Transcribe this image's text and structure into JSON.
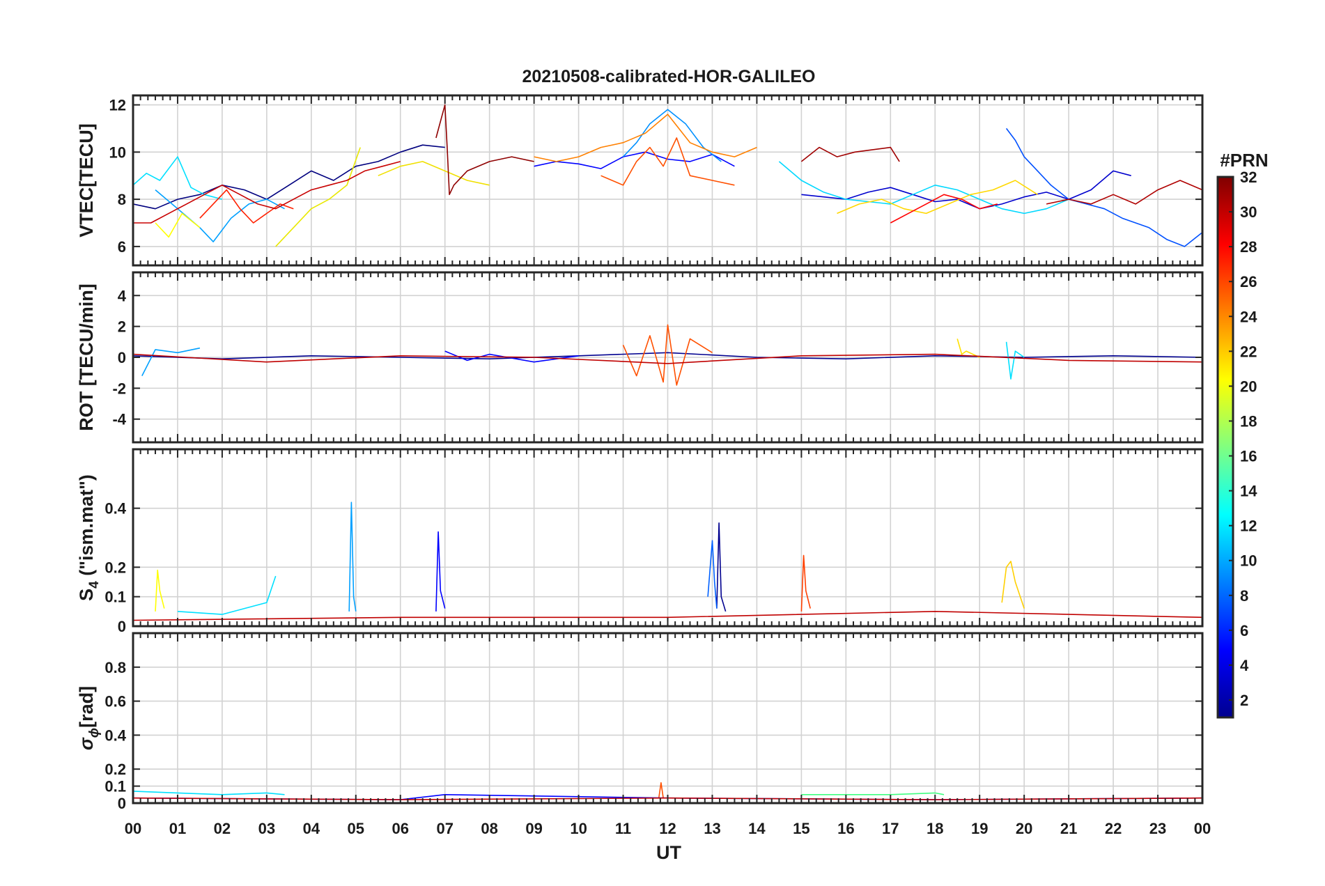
{
  "chart_data": {
    "type": "line",
    "title": "20210508-calibrated-HOR-GALILEO",
    "xlabel": "UT",
    "x_range_hours": [
      0,
      24
    ],
    "x_tick_labels": [
      "00",
      "01",
      "02",
      "03",
      "04",
      "05",
      "06",
      "07",
      "08",
      "09",
      "10",
      "11",
      "12",
      "13",
      "14",
      "15",
      "16",
      "17",
      "18",
      "19",
      "20",
      "21",
      "22",
      "23",
      "00"
    ],
    "grid": true,
    "colorbar": {
      "label": "#PRN",
      "range": [
        1,
        32
      ],
      "tick_labels": [
        "2",
        "4",
        "6",
        "8",
        "10",
        "12",
        "14",
        "16",
        "18",
        "20",
        "22",
        "24",
        "26",
        "28",
        "30",
        "32"
      ],
      "colormap": "jet",
      "colormap_stops": [
        "#00008f",
        "#0000ff",
        "#0080ff",
        "#00ffff",
        "#80ff80",
        "#ffff00",
        "#ff8000",
        "#ff0000",
        "#800000"
      ]
    },
    "panels": [
      {
        "id": "vtec",
        "ylabel_parts": [
          "VTEC[TECU]"
        ],
        "ylim": [
          5.2,
          12.4
        ],
        "y_ticks": [
          6,
          8,
          10,
          12
        ],
        "y_tick_labels": [
          "6",
          "8",
          "10",
          "12"
        ],
        "series": [
          {
            "color": "#00007f",
            "x": [
              0,
              0.5,
              1,
              1.5,
              2,
              2.5,
              3,
              3.5,
              4,
              4.5,
              5,
              5.5,
              6,
              6.5,
              7
            ],
            "values": [
              7.8,
              7.6,
              8.0,
              8.2,
              8.6,
              8.4,
              8.0,
              8.6,
              9.2,
              8.8,
              9.4,
              9.6,
              10.0,
              10.3,
              10.2
            ]
          },
          {
            "color": "#0000ff",
            "x": [
              9,
              9.5,
              10,
              10.5,
              11,
              11.5,
              12,
              12.5,
              13,
              13.5
            ],
            "values": [
              9.4,
              9.6,
              9.5,
              9.3,
              9.8,
              10.0,
              9.7,
              9.6,
              9.9,
              9.4
            ]
          },
          {
            "color": "#0000cd",
            "x": [
              15,
              15.5,
              16,
              16.5,
              17,
              17.5,
              18,
              18.5,
              19,
              19.5,
              20,
              20.5,
              21,
              21.5,
              22,
              22.4
            ],
            "values": [
              8.2,
              8.1,
              8.0,
              8.3,
              8.5,
              8.2,
              7.9,
              8.0,
              7.6,
              7.8,
              8.1,
              8.3,
              8.0,
              8.4,
              9.2,
              9.0
            ]
          },
          {
            "color": "#0050ff",
            "x": [
              19.6,
              19.8,
              20,
              20.3,
              20.6,
              21,
              21.4,
              21.8,
              22.2,
              22.8,
              23.2,
              23.6,
              24
            ],
            "values": [
              11.0,
              10.5,
              9.8,
              9.2,
              8.6,
              8.0,
              7.8,
              7.6,
              7.2,
              6.8,
              6.3,
              6.0,
              6.6
            ]
          },
          {
            "color": "#00a0ff",
            "x": [
              0.5,
              1,
              1.5,
              1.8,
              2.2,
              2.6,
              3,
              3.4
            ],
            "values": [
              8.4,
              7.6,
              6.8,
              6.2,
              7.2,
              7.8,
              8.0,
              7.6
            ]
          },
          {
            "color": "#0090ff",
            "x": [
              11,
              11.3,
              11.6,
              12,
              12.4,
              12.8,
              13.2
            ],
            "values": [
              9.8,
              10.4,
              11.2,
              11.8,
              11.2,
              10.2,
              9.6
            ]
          },
          {
            "color": "#00e0ff",
            "x": [
              0,
              0.3,
              0.6,
              1,
              1.3,
              1.6,
              2
            ],
            "values": [
              8.6,
              9.1,
              8.8,
              9.8,
              8.5,
              8.2,
              8.0
            ]
          },
          {
            "color": "#00d8ff",
            "x": [
              14.5,
              15,
              15.5,
              16,
              16.5,
              17,
              17.5,
              18,
              18.5,
              19,
              19.5,
              20,
              20.5,
              21
            ],
            "values": [
              9.6,
              8.8,
              8.3,
              8.0,
              7.9,
              7.8,
              8.2,
              8.6,
              8.4,
              8.0,
              7.6,
              7.4,
              7.6,
              8.0
            ]
          },
          {
            "color": "#ffff00",
            "x": [
              0.5,
              0.8,
              1.1,
              1.5
            ],
            "values": [
              7.0,
              6.4,
              7.4,
              6.8
            ]
          },
          {
            "color": "#e8e800",
            "x": [
              3.2,
              3.6,
              4,
              4.4,
              4.8,
              5.1
            ],
            "values": [
              6.0,
              6.8,
              7.6,
              8.0,
              8.6,
              10.2
            ]
          },
          {
            "color": "#f0e000",
            "x": [
              5.5,
              6,
              6.5,
              7,
              7.5,
              8
            ],
            "values": [
              9.0,
              9.4,
              9.6,
              9.2,
              8.8,
              8.6
            ]
          },
          {
            "color": "#ffd800",
            "x": [
              15.8,
              16.3,
              16.8,
              17.3,
              17.8,
              18.3,
              18.8,
              19.3,
              19.8,
              20.3
            ],
            "values": [
              7.4,
              7.8,
              8.0,
              7.6,
              7.4,
              7.8,
              8.2,
              8.4,
              8.8,
              8.2
            ]
          },
          {
            "color": "#ff8000",
            "x": [
              9,
              9.5,
              10,
              10.5,
              11,
              11.5,
              12,
              12.5,
              13,
              13.5,
              14
            ],
            "values": [
              9.8,
              9.6,
              9.8,
              10.2,
              10.4,
              10.8,
              11.6,
              10.4,
              10.0,
              9.8,
              10.2
            ]
          },
          {
            "color": "#ff5000",
            "x": [
              10.5,
              11,
              11.3,
              11.6,
              11.9,
              12.2,
              12.5,
              13,
              13.5
            ],
            "values": [
              9.0,
              8.6,
              9.6,
              10.2,
              9.4,
              10.6,
              9.0,
              8.8,
              8.6
            ]
          },
          {
            "color": "#ff2000",
            "x": [
              1.5,
              1.8,
              2.1,
              2.4,
              2.7,
              3,
              3.3,
              3.6
            ],
            "values": [
              7.2,
              7.8,
              8.4,
              7.6,
              7.0,
              7.4,
              7.8,
              7.6
            ]
          },
          {
            "color": "#ff0000",
            "x": [
              17,
              17.4,
              17.8,
              18.2,
              18.6,
              19,
              19.4
            ],
            "values": [
              7.0,
              7.4,
              7.8,
              8.2,
              8.0,
              7.6,
              7.8
            ]
          },
          {
            "color": "#c80000",
            "x": [
              0,
              0.4,
              0.8,
              1.2,
              1.6,
              2,
              2.4,
              2.8,
              3.2,
              3.6,
              4,
              4.4,
              4.8,
              5.2,
              5.6,
              6
            ],
            "values": [
              7.0,
              7.0,
              7.4,
              7.8,
              8.2,
              8.6,
              8.2,
              7.8,
              7.6,
              8.0,
              8.4,
              8.6,
              8.8,
              9.2,
              9.4,
              9.6
            ]
          },
          {
            "color": "#a00000",
            "x": [
              15,
              15.4,
              15.8,
              16.2,
              16.6,
              17,
              17.2
            ],
            "values": [
              9.6,
              10.2,
              9.8,
              10.0,
              10.1,
              10.2,
              9.6
            ]
          },
          {
            "color": "#8f0000",
            "x": [
              6.8,
              7,
              7.05,
              7.1,
              7.2,
              7.5,
              8,
              8.5,
              9
            ],
            "values": [
              10.6,
              12.0,
              10.2,
              8.2,
              8.6,
              9.2,
              9.6,
              9.8,
              9.6
            ]
          },
          {
            "color": "#b00000",
            "x": [
              20.5,
              21,
              21.5,
              22,
              22.5,
              23,
              23.5,
              24
            ],
            "values": [
              7.8,
              8.0,
              7.8,
              8.2,
              7.8,
              8.4,
              8.8,
              8.4
            ]
          }
        ]
      },
      {
        "id": "rot",
        "ylabel_parts": [
          "ROT [TECU/min]"
        ],
        "ylim": [
          -5.5,
          5.5
        ],
        "y_ticks": [
          -4,
          -2,
          0,
          2,
          4
        ],
        "y_tick_labels": [
          "-4",
          "-2",
          "0",
          "2",
          "4"
        ],
        "noise_band": {
          "baseline": 0.0,
          "amplitude": 0.25
        },
        "series": [
          {
            "color": "#00008f",
            "x": [
              0,
              2,
              4,
              6,
              8,
              10,
              12,
              14,
              16,
              18,
              20,
              22,
              24
            ],
            "values": [
              0.1,
              -0.1,
              0.1,
              0,
              -0.1,
              0.1,
              0.3,
              0,
              -0.1,
              0.1,
              0,
              0.1,
              0
            ]
          },
          {
            "color": "#0000ff",
            "x": [
              7,
              7.5,
              8,
              9,
              10
            ],
            "values": [
              0.4,
              -0.2,
              0.2,
              -0.3,
              0.1
            ]
          },
          {
            "color": "#00a0ff",
            "x": [
              0.2,
              0.5,
              1,
              1.5
            ],
            "values": [
              -1.2,
              0.5,
              0.3,
              0.6
            ]
          },
          {
            "color": "#00e0ff",
            "x": [
              19.6,
              19.7,
              19.8,
              20
            ],
            "values": [
              1.0,
              -1.4,
              0.4,
              0
            ]
          },
          {
            "color": "#ffe000",
            "x": [
              18.5,
              18.6,
              18.7,
              19
            ],
            "values": [
              1.2,
              0.2,
              0.4,
              0
            ]
          },
          {
            "color": "#ff5000",
            "x": [
              11,
              11.3,
              11.6,
              11.9,
              12,
              12.2,
              12.5,
              13
            ],
            "values": [
              0.8,
              -1.2,
              1.4,
              -1.6,
              2.1,
              -1.8,
              1.2,
              0.3
            ]
          },
          {
            "color": "#c00000",
            "x": [
              0,
              3,
              6,
              9,
              12,
              15,
              18,
              21,
              24
            ],
            "values": [
              0.2,
              -0.3,
              0.1,
              0,
              -0.4,
              0.1,
              0.2,
              -0.2,
              -0.3
            ]
          }
        ]
      },
      {
        "id": "s4",
        "ylabel_parts": [
          "S",
          "4",
          " (\"ism.mat\")"
        ],
        "ylim": [
          0,
          0.6
        ],
        "y_ticks": [
          0,
          0.1,
          0.2,
          0.4
        ],
        "y_tick_labels": [
          "0",
          "0.1",
          "0.2",
          "0.4"
        ],
        "series": [
          {
            "color": "#00a0ff",
            "x": [
              4.85,
              4.9,
              4.95,
              5.0
            ],
            "values": [
              0.05,
              0.42,
              0.1,
              0.05
            ]
          },
          {
            "color": "#0000ff",
            "x": [
              6.8,
              6.85,
              6.9,
              7.0
            ],
            "values": [
              0.05,
              0.32,
              0.12,
              0.06
            ]
          },
          {
            "color": "#00008f",
            "x": [
              13.1,
              13.15,
              13.2,
              13.3
            ],
            "values": [
              0.06,
              0.35,
              0.1,
              0.05
            ]
          },
          {
            "color": "#0060ff",
            "x": [
              12.9,
              13,
              13.05,
              13.1
            ],
            "values": [
              0.1,
              0.29,
              0.15,
              0.06
            ]
          },
          {
            "color": "#ff4000",
            "x": [
              15,
              15.05,
              15.1,
              15.2
            ],
            "values": [
              0.05,
              0.24,
              0.12,
              0.06
            ]
          },
          {
            "color": "#ffd000",
            "x": [
              19.5,
              19.6,
              19.7,
              19.8,
              20
            ],
            "values": [
              0.08,
              0.2,
              0.22,
              0.15,
              0.06
            ]
          },
          {
            "color": "#ffff00",
            "x": [
              0.5,
              0.55,
              0.6,
              0.7
            ],
            "values": [
              0.05,
              0.19,
              0.12,
              0.06
            ]
          },
          {
            "color": "#00e0ff",
            "x": [
              1,
              2,
              3,
              3.2
            ],
            "values": [
              0.05,
              0.04,
              0.08,
              0.17
            ]
          },
          {
            "color": "#c00000",
            "x": [
              0,
              6,
              12,
              18,
              24
            ],
            "values": [
              0.02,
              0.03,
              0.03,
              0.05,
              0.03
            ]
          }
        ]
      },
      {
        "id": "sigma_phi",
        "ylabel_parts": [
          "σ",
          "ϕ",
          "[rad]"
        ],
        "ylim": [
          0,
          1.0
        ],
        "y_ticks": [
          0,
          0.1,
          0.2,
          0.4,
          0.6,
          0.8
        ],
        "y_tick_labels": [
          "0",
          "0.1",
          "0.2",
          "0.4",
          "0.6",
          "0.8"
        ],
        "series": [
          {
            "color": "#00e0ff",
            "x": [
              0,
              1,
              2,
              3,
              3.4
            ],
            "values": [
              0.07,
              0.06,
              0.05,
              0.06,
              0.05
            ]
          },
          {
            "color": "#40ff80",
            "x": [
              15,
              16,
              17,
              18,
              18.2
            ],
            "values": [
              0.05,
              0.05,
              0.05,
              0.06,
              0.05
            ]
          },
          {
            "color": "#ff5000",
            "x": [
              11.8,
              11.85,
              11.9
            ],
            "values": [
              0.03,
              0.12,
              0.03
            ]
          },
          {
            "color": "#0000ff",
            "x": [
              0,
              6,
              7,
              12,
              18,
              24
            ],
            "values": [
              0.03,
              0.02,
              0.05,
              0.03,
              0.02,
              0.03
            ]
          },
          {
            "color": "#c00000",
            "x": [
              0,
              6,
              12,
              18,
              24
            ],
            "values": [
              0.03,
              0.02,
              0.03,
              0.02,
              0.03
            ]
          }
        ]
      }
    ]
  }
}
